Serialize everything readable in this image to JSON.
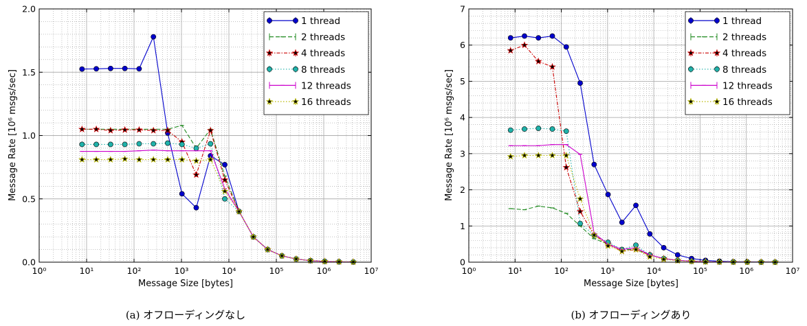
{
  "chart_data": [
    {
      "type": "line",
      "caption": "(a) オフローディングなし",
      "xlabel": "Message Size [bytes]",
      "ylabel": "Message Rate [10⁶ msgs/sec]",
      "xscale": "log",
      "xlim": [
        1,
        10000000
      ],
      "ylim": [
        0,
        2.0
      ],
      "x_ticks": [
        "10⁰",
        "10¹",
        "10²",
        "10³",
        "10⁴",
        "10⁵",
        "10⁶",
        "10⁷"
      ],
      "y_ticks": [
        "0.0",
        "0.5",
        "1.0",
        "1.5",
        "2.0"
      ],
      "grid": true,
      "legend_position": "top-right",
      "x": [
        8,
        16,
        32,
        64,
        128,
        256,
        512,
        1024,
        2048,
        4096,
        8192,
        16384,
        32768,
        65536,
        131072,
        262144,
        524288,
        1048576,
        2097152,
        4194304
      ],
      "series": [
        {
          "name": "1 thread",
          "color": "#0000cc",
          "marker": "circle",
          "dash": "solid",
          "values": [
            1.525,
            1.527,
            1.53,
            1.53,
            1.527,
            1.78,
            1.02,
            0.54,
            0.43,
            0.84,
            0.77,
            0.4,
            0.2,
            0.1,
            0.05,
            0.025,
            0.012,
            0.006,
            0.003,
            0.0015
          ]
        },
        {
          "name": "2 threads",
          "color": "#228b22",
          "marker": "bar",
          "dash": "dashed",
          "values": [
            1.05,
            1.05,
            1.05,
            1.05,
            1.05,
            1.05,
            1.05,
            1.08,
            0.9,
            1.05,
            0.68,
            0.4,
            0.2,
            0.1,
            0.05,
            0.025,
            0.012,
            0.006,
            0.003,
            0.0015
          ]
        },
        {
          "name": "4 threads",
          "color": "#cc0000",
          "marker": "star",
          "dash": "dashdot",
          "values": [
            1.05,
            1.05,
            1.04,
            1.045,
            1.045,
            1.04,
            1.04,
            0.95,
            0.69,
            1.04,
            0.65,
            0.4,
            0.2,
            0.1,
            0.05,
            0.025,
            0.012,
            0.006,
            0.003,
            0.0015
          ]
        },
        {
          "name": "8 threads",
          "color": "#20b2aa",
          "marker": "circle",
          "dash": "dotted",
          "values": [
            0.93,
            0.93,
            0.93,
            0.93,
            0.935,
            0.935,
            0.94,
            0.93,
            0.9,
            0.935,
            0.5,
            0.4,
            0.2,
            0.1,
            0.05,
            0.025,
            0.012,
            0.006,
            0.003,
            0.0015
          ]
        },
        {
          "name": "12 threads",
          "color": "#cc00cc",
          "marker": "bar",
          "dash": "solid",
          "values": [
            0.875,
            0.875,
            0.875,
            0.875,
            0.88,
            0.885,
            0.88,
            0.88,
            0.88,
            0.88,
            0.58,
            0.4,
            0.2,
            0.1,
            0.05,
            0.025,
            0.012,
            0.006,
            0.003,
            0.0015
          ]
        },
        {
          "name": "16 threads",
          "color": "#b8b800",
          "marker": "star",
          "dash": "dotted",
          "values": [
            0.81,
            0.81,
            0.81,
            0.815,
            0.81,
            0.81,
            0.81,
            0.81,
            0.8,
            0.81,
            0.56,
            0.4,
            0.2,
            0.1,
            0.05,
            0.025,
            0.012,
            0.006,
            0.003,
            0.0015
          ]
        }
      ]
    },
    {
      "type": "line",
      "caption": "(b) オフローディングあり",
      "xlabel": "Message Size [bytes]",
      "ylabel": "Message Rate [10⁶ msgs/sec]",
      "xscale": "log",
      "xlim": [
        1,
        10000000
      ],
      "ylim": [
        0,
        7
      ],
      "x_ticks": [
        "10⁰",
        "10¹",
        "10²",
        "10³",
        "10⁴",
        "10⁵",
        "10⁶",
        "10⁷"
      ],
      "y_ticks": [
        "0",
        "1",
        "2",
        "3",
        "4",
        "5",
        "6",
        "7"
      ],
      "grid": true,
      "legend_position": "top-right",
      "x": [
        8,
        16,
        32,
        64,
        128,
        256,
        512,
        1024,
        2048,
        4096,
        8192,
        16384,
        32768,
        65536,
        131072,
        262144,
        524288,
        1048576,
        2097152,
        4194304
      ],
      "series": [
        {
          "name": "1 thread",
          "color": "#0000cc",
          "marker": "circle",
          "dash": "solid",
          "values": [
            6.2,
            6.25,
            6.2,
            6.25,
            5.95,
            4.95,
            2.7,
            1.87,
            1.1,
            1.57,
            0.78,
            0.4,
            0.2,
            0.1,
            0.05,
            0.025,
            0.012,
            0.006,
            0.003,
            0.0015
          ]
        },
        {
          "name": "2 threads",
          "color": "#228b22",
          "marker": "bar",
          "dash": "dashed",
          "values": [
            1.48,
            1.45,
            1.55,
            1.5,
            1.35,
            1.0,
            0.65,
            0.5,
            0.35,
            0.35,
            0.2,
            0.1,
            0.05,
            0.025,
            0.012,
            0.006,
            0.003,
            0.0015,
            0.0008,
            0.0004
          ]
        },
        {
          "name": "4 threads",
          "color": "#cc0000",
          "marker": "star",
          "dash": "dashdot",
          "values": [
            5.85,
            6.0,
            5.55,
            5.4,
            2.62,
            1.4,
            0.75,
            0.5,
            0.3,
            0.35,
            0.2,
            0.1,
            0.05,
            0.025,
            0.012,
            0.006,
            0.003,
            0.0015,
            0.0008,
            0.0004
          ]
        },
        {
          "name": "8 threads",
          "color": "#20b2aa",
          "marker": "circle",
          "dash": "dotted",
          "values": [
            3.65,
            3.68,
            3.7,
            3.68,
            3.62,
            1.07,
            0.75,
            0.55,
            0.35,
            0.47,
            0.2,
            0.1,
            0.05,
            0.025,
            0.012,
            0.006,
            0.003,
            0.0015,
            0.0008,
            0.0004
          ]
        },
        {
          "name": "12 threads",
          "color": "#cc00cc",
          "marker": "bar",
          "dash": "solid",
          "values": [
            3.22,
            3.22,
            3.22,
            3.25,
            3.25,
            2.98,
            0.8,
            0.5,
            0.35,
            0.4,
            0.2,
            0.1,
            0.05,
            0.025,
            0.012,
            0.006,
            0.003,
            0.0015,
            0.0008,
            0.0004
          ]
        },
        {
          "name": "16 threads",
          "color": "#b8b800",
          "marker": "star",
          "dash": "dotted",
          "values": [
            2.92,
            2.95,
            2.95,
            2.95,
            2.95,
            1.75,
            0.75,
            0.45,
            0.3,
            0.35,
            0.15,
            0.08,
            0.04,
            0.02,
            0.01,
            0.005,
            0.003,
            0.0015,
            0.0008,
            0.0004
          ]
        }
      ]
    }
  ]
}
